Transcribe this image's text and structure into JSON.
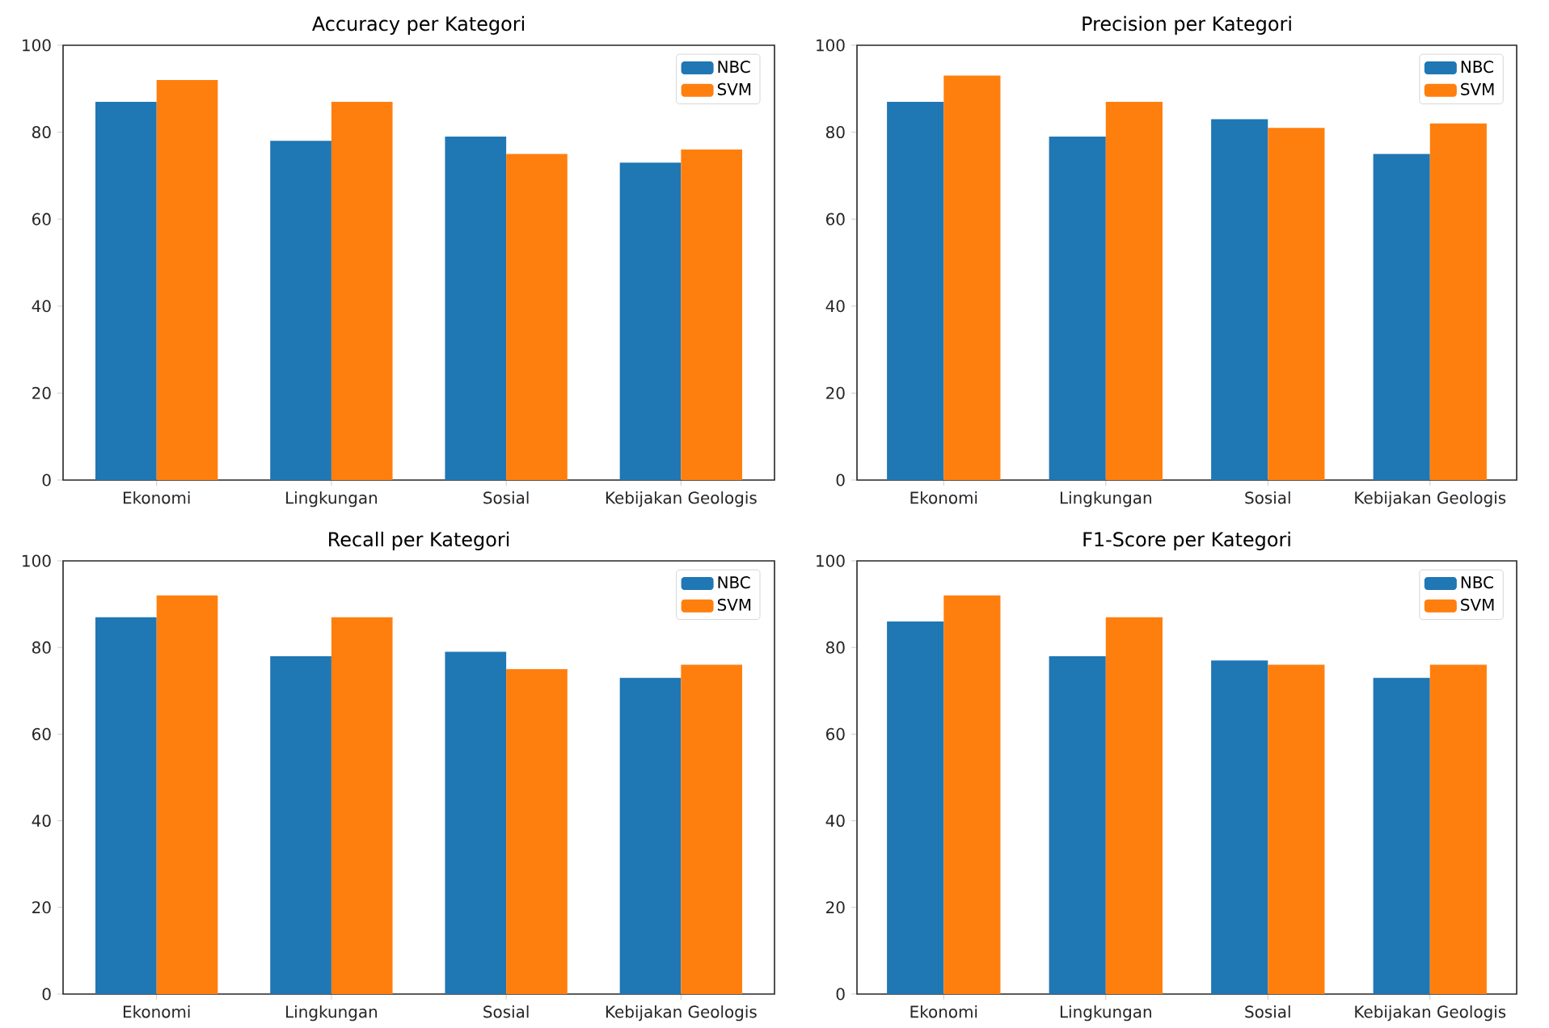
{
  "chart_data": [
    {
      "type": "bar",
      "title": "Accuracy per Kategori",
      "categories": [
        "Ekonomi",
        "Lingkungan",
        "Sosial",
        "Kebijakan Geologis"
      ],
      "series": [
        {
          "name": "NBC",
          "color": "#1f77b4",
          "values": [
            87,
            78,
            79,
            73
          ]
        },
        {
          "name": "SVM",
          "color": "#ff7f0e",
          "values": [
            92,
            87,
            75,
            76
          ]
        }
      ],
      "ylim": [
        0,
        100
      ],
      "yticks": [
        0,
        20,
        40,
        60,
        80,
        100
      ],
      "legend": "top right"
    },
    {
      "type": "bar",
      "title": "Precision per Kategori",
      "categories": [
        "Ekonomi",
        "Lingkungan",
        "Sosial",
        "Kebijakan Geologis"
      ],
      "series": [
        {
          "name": "NBC",
          "color": "#1f77b4",
          "values": [
            87,
            79,
            83,
            75
          ]
        },
        {
          "name": "SVM",
          "color": "#ff7f0e",
          "values": [
            93,
            87,
            81,
            82
          ]
        }
      ],
      "ylim": [
        0,
        100
      ],
      "yticks": [
        0,
        20,
        40,
        60,
        80,
        100
      ],
      "legend": "top right"
    },
    {
      "type": "bar",
      "title": "Recall per Kategori",
      "categories": [
        "Ekonomi",
        "Lingkungan",
        "Sosial",
        "Kebijakan Geologis"
      ],
      "series": [
        {
          "name": "NBC",
          "color": "#1f77b4",
          "values": [
            87,
            78,
            79,
            73
          ]
        },
        {
          "name": "SVM",
          "color": "#ff7f0e",
          "values": [
            92,
            87,
            75,
            76
          ]
        }
      ],
      "ylim": [
        0,
        100
      ],
      "yticks": [
        0,
        20,
        40,
        60,
        80,
        100
      ],
      "legend": "top right"
    },
    {
      "type": "bar",
      "title": "F1-Score per Kategori",
      "categories": [
        "Ekonomi",
        "Lingkungan",
        "Sosial",
        "Kebijakan Geologis"
      ],
      "series": [
        {
          "name": "NBC",
          "color": "#1f77b4",
          "values": [
            86,
            78,
            77,
            73
          ]
        },
        {
          "name": "SVM",
          "color": "#ff7f0e",
          "values": [
            92,
            87,
            76,
            76
          ]
        }
      ],
      "ylim": [
        0,
        100
      ],
      "yticks": [
        0,
        20,
        40,
        60,
        80,
        100
      ],
      "legend": "top right"
    }
  ]
}
